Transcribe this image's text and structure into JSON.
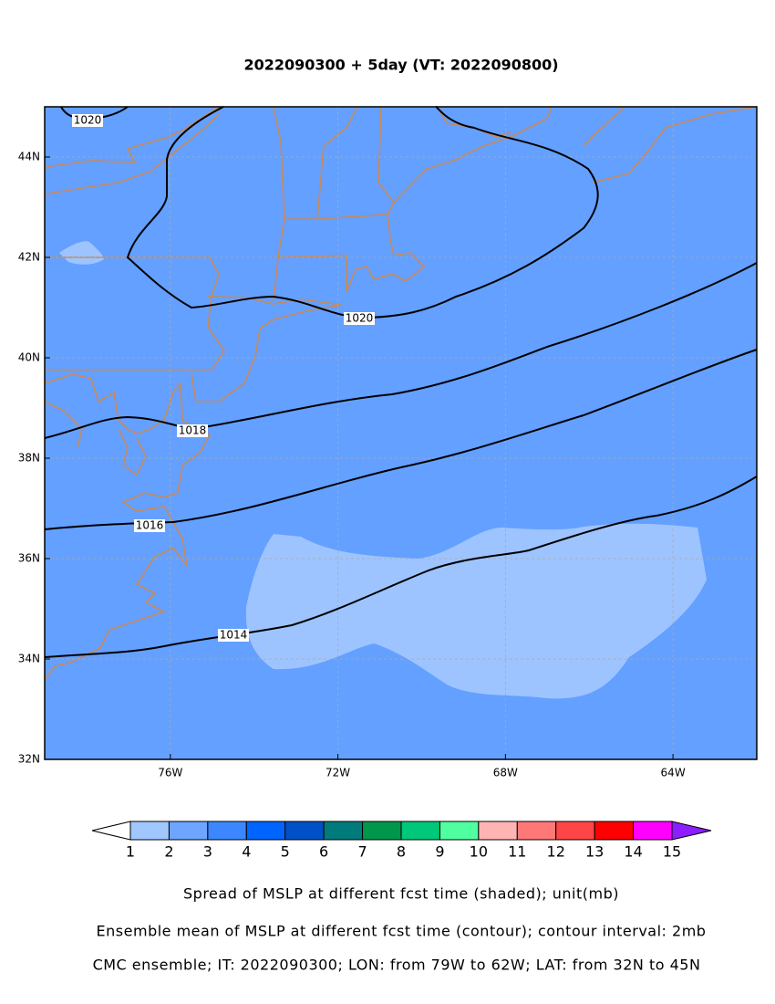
{
  "map": {
    "title": "2022090300 + 5day (VT: 2022090800)",
    "xlim": [
      -79,
      -62
    ],
    "ylim": [
      32,
      45
    ],
    "xticks": [
      {
        "value": -76,
        "label": "76W"
      },
      {
        "value": -72,
        "label": "72W"
      },
      {
        "value": -68,
        "label": "68W"
      },
      {
        "value": -64,
        "label": "64W"
      }
    ],
    "yticks": [
      {
        "value": 32,
        "label": "32N"
      },
      {
        "value": 34,
        "label": "34N"
      },
      {
        "value": 36,
        "label": "36N"
      },
      {
        "value": 38,
        "label": "38N"
      },
      {
        "value": 40,
        "label": "40N"
      },
      {
        "value": 42,
        "label": "42N"
      },
      {
        "value": 44,
        "label": "44N"
      }
    ],
    "contour_labels": [
      1020,
      1020,
      1018,
      1016,
      1014
    ],
    "colorbar": {
      "levels": [
        1,
        2,
        3,
        4,
        5,
        6,
        7,
        8,
        9,
        10,
        11,
        12,
        13,
        14,
        15
      ],
      "colors": [
        "#a0c8ff",
        "#6ea5ff",
        "#3c87ff",
        "#0064ff",
        "#0050c8",
        "#007a7a",
        "#00964b",
        "#00c87a",
        "#50ffa0",
        "#ffb4b4",
        "#ff7878",
        "#ff4646",
        "#ff0000",
        "#ff00ff"
      ],
      "under_color": "#ffffff",
      "over_color": "#8c1eff"
    },
    "captions": [
      "Spread of MSLP at different fcst time (shaded); unit(mb)",
      "Ensemble mean of MSLP at different fcst time (contour); contour interval: 2mb",
      "CMC ensemble; IT: 2022090300; LON: from 79W to 62W; LAT: from 32N to 45N"
    ]
  }
}
